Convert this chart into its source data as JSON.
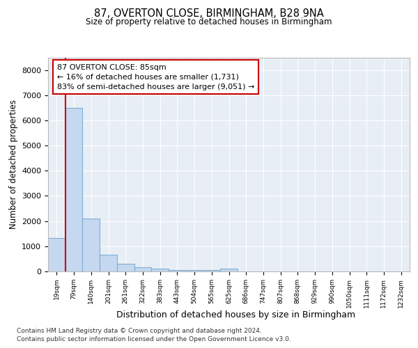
{
  "title1": "87, OVERTON CLOSE, BIRMINGHAM, B28 9NA",
  "title2": "Size of property relative to detached houses in Birmingham",
  "xlabel": "Distribution of detached houses by size in Birmingham",
  "ylabel": "Number of detached properties",
  "bar_labels": [
    "19sqm",
    "79sqm",
    "140sqm",
    "201sqm",
    "261sqm",
    "322sqm",
    "383sqm",
    "443sqm",
    "504sqm",
    "565sqm",
    "625sqm",
    "686sqm",
    "747sqm",
    "807sqm",
    "868sqm",
    "929sqm",
    "990sqm",
    "1050sqm",
    "1111sqm",
    "1172sqm",
    "1232sqm"
  ],
  "bar_values": [
    1320,
    6500,
    2100,
    650,
    310,
    160,
    120,
    50,
    50,
    50,
    100,
    0,
    0,
    0,
    0,
    0,
    0,
    0,
    0,
    0,
    0
  ],
  "bar_color": "#c5d8f0",
  "bar_edge_color": "#7bafd4",
  "property_line_x": 0.5,
  "annotation_text": "87 OVERTON CLOSE: 85sqm\n← 16% of detached houses are smaller (1,731)\n83% of semi-detached houses are larger (9,051) →",
  "ylim": [
    0,
    8500
  ],
  "yticks": [
    0,
    1000,
    2000,
    3000,
    4000,
    5000,
    6000,
    7000,
    8000
  ],
  "footer1": "Contains HM Land Registry data © Crown copyright and database right 2024.",
  "footer2": "Contains public sector information licensed under the Open Government Licence v3.0.",
  "fig_bg_color": "#ffffff",
  "plot_bg_color": "#e8eef5",
  "grid_color": "#ffffff",
  "annotation_box_edgecolor": "#cc0000",
  "red_line_color": "#cc0000"
}
